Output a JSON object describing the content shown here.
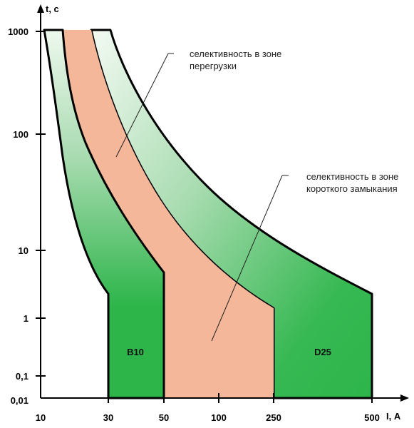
{
  "diagram": {
    "y_axis_title": "t, с",
    "x_axis_title": "I, А",
    "y_ticks": [
      "1000",
      "100",
      "10",
      "1",
      "0,1",
      "0,01"
    ],
    "x_ticks": [
      "10",
      "30",
      "50",
      "100",
      "250",
      "500"
    ],
    "annotation_overload_line1": "селективность в зоне",
    "annotation_overload_line2": "перегрузки",
    "annotation_short_line1": "селективность в зоне",
    "annotation_short_line2": "короткого замыкания",
    "breaker_b_label": "B10",
    "breaker_d_label": "D25",
    "colors": {
      "band_dark": "#2db54a",
      "band_light": "#e6f4e6",
      "selectivity_fill": "#f4b79a",
      "outline": "#000000"
    }
  }
}
